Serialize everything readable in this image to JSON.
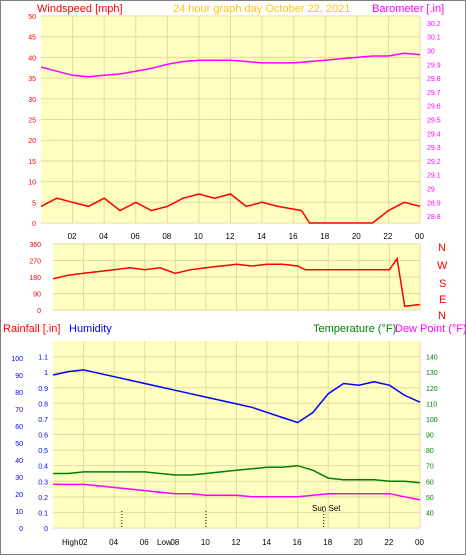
{
  "header": {
    "left_label": "Windspeed [mph]",
    "title": "24 hour graph day   October 22, 2021",
    "right_label": "Barometer [.in]"
  },
  "middle": {
    "compass": [
      "N",
      "W",
      "S",
      "E",
      "N"
    ]
  },
  "bottom_header": {
    "rainfall_label": "Rainfall [.in]",
    "humidity_label": "Humidity",
    "temperature_label": "Temperature (°F)",
    "dewpoint_label": "Dew Point (°F)"
  },
  "annotations": {
    "high": "High",
    "low": "Low",
    "sunset": "Sun Set"
  },
  "colors": {
    "background": "#FFFFC0",
    "frame": "#FFFFFF",
    "grid": "#E8D8A0",
    "wind": "#FF0000",
    "gust_avg": "#0000FF",
    "wind_low": "#008000",
    "barometer": "#FF00FF",
    "direction": "#FF0000",
    "humidity": "#0000FF",
    "temperature": "#008000",
    "dewpoint": "#FF00FF",
    "title": "#FFC800",
    "axis_left": "#FF0000",
    "rain_axis": "#0000FF",
    "temp_axis": "#008000"
  },
  "chart_data": [
    {
      "type": "line",
      "x_ticks": [
        "02",
        "04",
        "06",
        "08",
        "10",
        "12",
        "14",
        "16",
        "18",
        "20",
        "22",
        "00"
      ],
      "xlim": [
        0,
        24
      ],
      "ylabel": "Windspeed [mph]",
      "ylim": [
        0,
        50
      ],
      "yticks": [
        0,
        5,
        10,
        15,
        20,
        25,
        30,
        35,
        40,
        45,
        50
      ],
      "y2label": "Barometer [.in]",
      "y2lim": [
        28.75,
        30.25
      ],
      "y2ticks": [
        "28.8",
        "28.9",
        "29",
        "29.1",
        "29.2",
        "29.3",
        "29.4",
        "29.5",
        "29.6",
        "29.7",
        "29.8",
        "29.9",
        "30",
        "30.1",
        "30.2"
      ],
      "series": [
        {
          "name": "Windspeed",
          "x": [
            0,
            1,
            2,
            3,
            4,
            5,
            6,
            7,
            8,
            9,
            10,
            11,
            12,
            13,
            14,
            15,
            16.5,
            17,
            18,
            19,
            20,
            21,
            22,
            23,
            24
          ],
          "values": [
            4,
            6,
            5,
            4,
            6,
            3,
            5,
            3,
            4,
            6,
            7,
            6,
            7,
            4,
            5,
            4,
            3,
            0,
            0,
            0,
            0,
            0,
            3,
            5,
            4
          ]
        },
        {
          "name": "Barometer",
          "x": [
            0,
            1,
            2,
            3,
            4,
            5,
            6,
            7,
            8,
            9,
            10,
            11,
            12,
            13,
            14,
            15,
            16,
            17,
            18,
            19,
            20,
            21,
            22,
            23,
            24
          ],
          "values": [
            29.88,
            29.85,
            29.82,
            29.81,
            29.82,
            29.83,
            29.85,
            29.87,
            29.9,
            29.92,
            29.93,
            29.93,
            29.93,
            29.92,
            29.91,
            29.91,
            29.91,
            29.92,
            29.93,
            29.94,
            29.95,
            29.96,
            29.96,
            29.98,
            29.97
          ]
        }
      ]
    },
    {
      "type": "line",
      "x_ticks": [],
      "xlim": [
        0,
        24
      ],
      "ylabel": "",
      "ylim": [
        0,
        360
      ],
      "yticks": [
        0,
        90,
        180,
        270,
        360
      ],
      "series": [
        {
          "name": "Wind direction",
          "x": [
            0,
            1,
            2,
            3,
            4,
            5,
            6,
            7,
            8,
            9,
            10,
            11,
            12,
            13,
            14,
            15,
            16,
            16.5,
            17,
            18,
            19,
            20,
            21,
            22,
            22.5,
            23,
            24
          ],
          "values": [
            170,
            190,
            200,
            210,
            220,
            230,
            220,
            230,
            200,
            220,
            230,
            240,
            250,
            240,
            250,
            250,
            240,
            220,
            220,
            220,
            220,
            220,
            220,
            220,
            280,
            20,
            30
          ]
        }
      ]
    },
    {
      "type": "line",
      "x_ticks": [
        "02",
        "04",
        "06",
        "08",
        "10",
        "12",
        "14",
        "16",
        "18",
        "20",
        "22",
        "00"
      ],
      "xlim": [
        0,
        24
      ],
      "ylabel": "Rainfall [.in]",
      "ylim": [
        0,
        1.2
      ],
      "yticks": [
        0,
        0.1,
        0.2,
        0.3,
        0.4,
        0.5,
        0.6,
        0.7,
        0.8,
        0.9,
        1,
        1.1
      ],
      "y_hum_ticks": [
        0,
        10,
        20,
        30,
        40,
        50,
        60,
        70,
        80,
        90,
        100
      ],
      "y2label": "Temperature (°F)",
      "y2lim": [
        30,
        150
      ],
      "y2ticks": [
        40,
        50,
        60,
        70,
        80,
        90,
        100,
        110,
        120,
        130,
        140
      ],
      "series": [
        {
          "name": "Humidity",
          "x": [
            0,
            1,
            2,
            3,
            4,
            5,
            6,
            7,
            8,
            9,
            10,
            11,
            12,
            13,
            14,
            15,
            16,
            17,
            18,
            19,
            20,
            21,
            22,
            23,
            24
          ],
          "values": [
            90,
            92,
            93,
            91,
            89,
            87,
            85,
            83,
            81,
            79,
            77,
            75,
            73,
            71,
            68,
            65,
            62,
            68,
            79,
            85,
            84,
            86,
            84,
            78,
            74
          ]
        },
        {
          "name": "Temperature",
          "x": [
            0,
            1,
            2,
            3,
            4,
            5,
            6,
            7,
            8,
            9,
            10,
            11,
            12,
            13,
            14,
            15,
            16,
            17,
            18,
            19,
            20,
            21,
            22,
            23,
            24
          ],
          "values": [
            65,
            65,
            66,
            66,
            66,
            66,
            66,
            65,
            64,
            64,
            65,
            66,
            67,
            68,
            69,
            69,
            70,
            67,
            62,
            61,
            61,
            61,
            60,
            60,
            59
          ]
        },
        {
          "name": "Dew Point",
          "x": [
            0,
            1,
            2,
            3,
            4,
            5,
            6,
            7,
            8,
            9,
            10,
            11,
            12,
            13,
            14,
            15,
            16,
            17,
            18,
            19,
            20,
            21,
            22,
            23,
            24
          ],
          "values": [
            58,
            58,
            58,
            57,
            56,
            55,
            54,
            53,
            52,
            52,
            51,
            51,
            51,
            50,
            50,
            50,
            50,
            51,
            52,
            52,
            52,
            52,
            52,
            50,
            48
          ]
        }
      ]
    }
  ]
}
